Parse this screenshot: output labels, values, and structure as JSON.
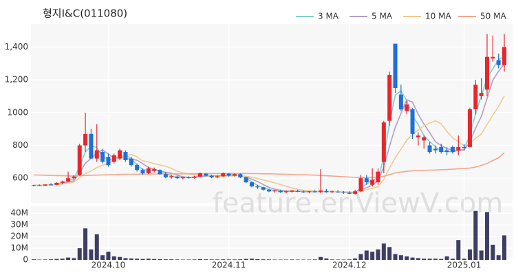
{
  "chart_data": {
    "type": "candlestick",
    "title": "형지I&C(011080)",
    "watermark": "feature.enViewV.com",
    "categories": [
      null,
      null,
      null,
      null,
      null,
      null,
      null,
      null,
      null,
      null,
      null,
      null,
      null,
      "2024.10",
      null,
      null,
      null,
      null,
      null,
      null,
      null,
      null,
      null,
      null,
      null,
      null,
      null,
      null,
      null,
      null,
      null,
      null,
      null,
      null,
      "2024.11",
      null,
      null,
      null,
      null,
      null,
      null,
      null,
      null,
      null,
      null,
      null,
      null,
      null,
      null,
      null,
      null,
      null,
      null,
      null,
      null,
      "2024.12",
      null,
      null,
      null,
      null,
      null,
      null,
      null,
      null,
      null,
      null,
      null,
      null,
      null,
      null,
      null,
      null,
      null,
      null,
      null,
      "2025.01",
      null,
      null,
      null,
      null,
      null,
      null,
      null
    ],
    "open": [
      555,
      558,
      555,
      562,
      560,
      572,
      580,
      600,
      620,
      800,
      870,
      720,
      760,
      730,
      700,
      720,
      760,
      720,
      680,
      650,
      630,
      645,
      650,
      625,
      605,
      610,
      600,
      605,
      602,
      610,
      628,
      615,
      605,
      612,
      628,
      615,
      625,
      605,
      575,
      550,
      545,
      530,
      520,
      522,
      515,
      518,
      522,
      518,
      515,
      520,
      515,
      522,
      515,
      518,
      515,
      512,
      505,
      520,
      600,
      560,
      575,
      700,
      950,
      1420,
      1110,
      1010,
      1020,
      850,
      830,
      800,
      780,
      790,
      770,
      790,
      770,
      790,
      790,
      1020,
      1100,
      1140,
      1330,
      1320,
      1290
    ],
    "high": [
      560,
      562,
      565,
      570,
      575,
      585,
      640,
      620,
      810,
      1000,
      900,
      930,
      780,
      750,
      750,
      780,
      770,
      730,
      690,
      660,
      670,
      665,
      655,
      640,
      620,
      615,
      608,
      612,
      615,
      635,
      632,
      620,
      618,
      635,
      632,
      630,
      630,
      610,
      580,
      560,
      548,
      535,
      528,
      530,
      525,
      528,
      530,
      525,
      522,
      528,
      655,
      535,
      525,
      528,
      522,
      520,
      530,
      620,
      620,
      660,
      660,
      950,
      1250,
      1420,
      1170,
      1070,
      1030,
      880,
      860,
      820,
      800,
      810,
      790,
      800,
      860,
      810,
      1030,
      1200,
      1210,
      1480,
      1470,
      1360,
      1480
    ],
    "low": [
      550,
      552,
      553,
      555,
      558,
      565,
      578,
      590,
      615,
      760,
      720,
      700,
      690,
      670,
      690,
      710,
      700,
      670,
      640,
      620,
      625,
      635,
      620,
      600,
      598,
      595,
      592,
      598,
      598,
      605,
      612,
      600,
      600,
      608,
      610,
      610,
      600,
      570,
      545,
      535,
      525,
      515,
      512,
      510,
      508,
      512,
      515,
      510,
      508,
      512,
      510,
      512,
      508,
      512,
      505,
      502,
      500,
      515,
      560,
      550,
      560,
      630,
      920,
      1120,
      1010,
      990,
      840,
      800,
      780,
      750,
      750,
      750,
      740,
      750,
      740,
      770,
      790,
      990,
      1080,
      1100,
      1310,
      1270,
      1250
    ],
    "close": [
      558,
      555,
      562,
      560,
      572,
      580,
      600,
      610,
      800,
      870,
      720,
      770,
      700,
      680,
      740,
      770,
      710,
      680,
      650,
      630,
      660,
      655,
      625,
      605,
      612,
      600,
      605,
      602,
      610,
      630,
      615,
      605,
      612,
      630,
      615,
      625,
      605,
      575,
      550,
      545,
      530,
      520,
      525,
      515,
      520,
      525,
      518,
      515,
      520,
      515,
      525,
      515,
      520,
      515,
      512,
      505,
      520,
      600,
      575,
      590,
      640,
      940,
      1230,
      1150,
      1020,
      1050,
      870,
      860,
      850,
      760,
      770,
      760,
      760,
      760,
      790,
      785,
      1020,
      1170,
      1120,
      1340,
      1340,
      1290,
      1400
    ],
    "up_color": "#e8262b",
    "down_color": "#1f6fd8",
    "ylim": [
      450,
      1540
    ],
    "yticks": [
      600,
      800,
      1000,
      {
        "value": 1200,
        "label": "1,200"
      },
      {
        "value": 1400,
        "label": "1,400"
      }
    ],
    "grid": true,
    "series": [
      {
        "name": "3 MA",
        "color": "#7fd0d4",
        "values": [
          558,
          556,
          558,
          559,
          565,
          571,
          584,
          597,
          670,
          760,
          797,
          787,
          730,
          717,
          707,
          730,
          740,
          720,
          680,
          653,
          647,
          648,
          647,
          628,
          614,
          606,
          606,
          602,
          606,
          614,
          618,
          617,
          611,
          616,
          619,
          623,
          615,
          602,
          577,
          557,
          542,
          532,
          525,
          520,
          520,
          520,
          521,
          519,
          518,
          517,
          520,
          518,
          520,
          517,
          516,
          511,
          512,
          542,
          565,
          588,
          602,
          723,
          937,
          1107,
          1133,
          1073,
          980,
          927,
          860,
          823,
          793,
          763,
          763,
          760,
          770,
          778,
          865,
          992,
          1103,
          1210,
          1267,
          1323,
          1343
        ]
      },
      {
        "name": "5 MA",
        "color": "#b59cc2",
        "values": [
          558,
          556,
          558,
          559,
          561,
          566,
          575,
          584,
          632,
          692,
          720,
          754,
          772,
          748,
          722,
          732,
          720,
          716,
          710,
          688,
          666,
          655,
          644,
          635,
          631,
          619,
          609,
          605,
          606,
          609,
          612,
          612,
          615,
          618,
          615,
          617,
          617,
          610,
          594,
          580,
          561,
          544,
          534,
          527,
          522,
          521,
          521,
          519,
          519,
          519,
          519,
          518,
          519,
          518,
          517,
          513,
          513,
          530,
          542,
          558,
          585,
          669,
          795,
          910,
          996,
          1078,
          1064,
          990,
          930,
          878,
          822,
          800,
          780,
          772,
          768,
          771,
          823,
          905,
          977,
          1087,
          1198,
          1252,
          1298
        ]
      },
      {
        "name": "10 MA",
        "color": "#f3c98f",
        "values": [
          558,
          556,
          558,
          559,
          561,
          565,
          570,
          576,
          602,
          629,
          644,
          665,
          679,
          691,
          708,
          727,
          738,
          745,
          730,
          706,
          700,
          688,
          681,
          673,
          660,
          643,
          633,
          625,
          621,
          621,
          616,
          611,
          610,
          612,
          613,
          615,
          615,
          612,
          606,
          598,
          589,
          581,
          572,
          561,
          551,
          541,
          533,
          527,
          524,
          521,
          520,
          520,
          519,
          519,
          518,
          516,
          516,
          525,
          530,
          538,
          549,
          592,
          663,
          726,
          777,
          832,
          867,
          893,
          920,
          937,
          950,
          932,
          885,
          846,
          823,
          797,
          812,
          843,
          870,
          928,
          985,
          1038,
          1102
        ]
      },
      {
        "name": "50 MA",
        "color": "#f4a68b",
        "values": [
          620,
          619,
          618,
          617,
          616,
          615,
          614,
          614,
          615,
          617,
          618,
          619,
          620,
          621,
          622,
          623,
          624,
          624,
          625,
          625,
          625,
          626,
          626,
          626,
          626,
          627,
          627,
          627,
          627,
          628,
          628,
          628,
          628,
          629,
          629,
          629,
          629,
          629,
          628,
          628,
          627,
          627,
          626,
          625,
          624,
          623,
          622,
          621,
          620,
          619,
          617,
          615,
          613,
          611,
          609,
          607,
          605,
          604,
          604,
          605,
          606,
          612,
          622,
          632,
          638,
          642,
          645,
          647,
          648,
          649,
          650,
          652,
          653,
          655,
          657,
          659,
          662,
          668,
          678,
          690,
          708,
          725,
          755
        ]
      }
    ],
    "volume": {
      "color": "#3e3e64",
      "ylim": [
        0,
        46000000
      ],
      "yticks": [
        0,
        {
          "value": 10000000,
          "label": "10M"
        },
        {
          "value": 20000000,
          "label": "20M"
        },
        {
          "value": 30000000,
          "label": "30M"
        },
        {
          "value": 40000000,
          "label": "40M"
        }
      ],
      "values": [
        500000,
        300000,
        400000,
        500000,
        800000,
        1000000,
        2000000,
        1500000,
        10000000,
        27000000,
        9000000,
        22000000,
        4000000,
        7000000,
        3000000,
        2500000,
        1500000,
        1200000,
        1000000,
        800000,
        1000000,
        700000,
        600000,
        500000,
        500000,
        400000,
        300000,
        300000,
        400000,
        600000,
        500000,
        400000,
        400000,
        500000,
        400000,
        400000,
        500000,
        800000,
        1000000,
        600000,
        500000,
        400000,
        300000,
        300000,
        300000,
        400000,
        300000,
        300000,
        300000,
        400000,
        2500000,
        1200000,
        400000,
        300000,
        300000,
        400000,
        1200000,
        5000000,
        8000000,
        7000000,
        9000000,
        14000000,
        11000000,
        5000000,
        4000000,
        3000000,
        2000000,
        1500000,
        1000000,
        1000000,
        1000000,
        800000,
        3000000,
        1000000,
        17000000,
        1000000,
        9000000,
        42000000,
        8000000,
        41000000,
        13000000,
        4000000,
        21000000
      ]
    }
  }
}
